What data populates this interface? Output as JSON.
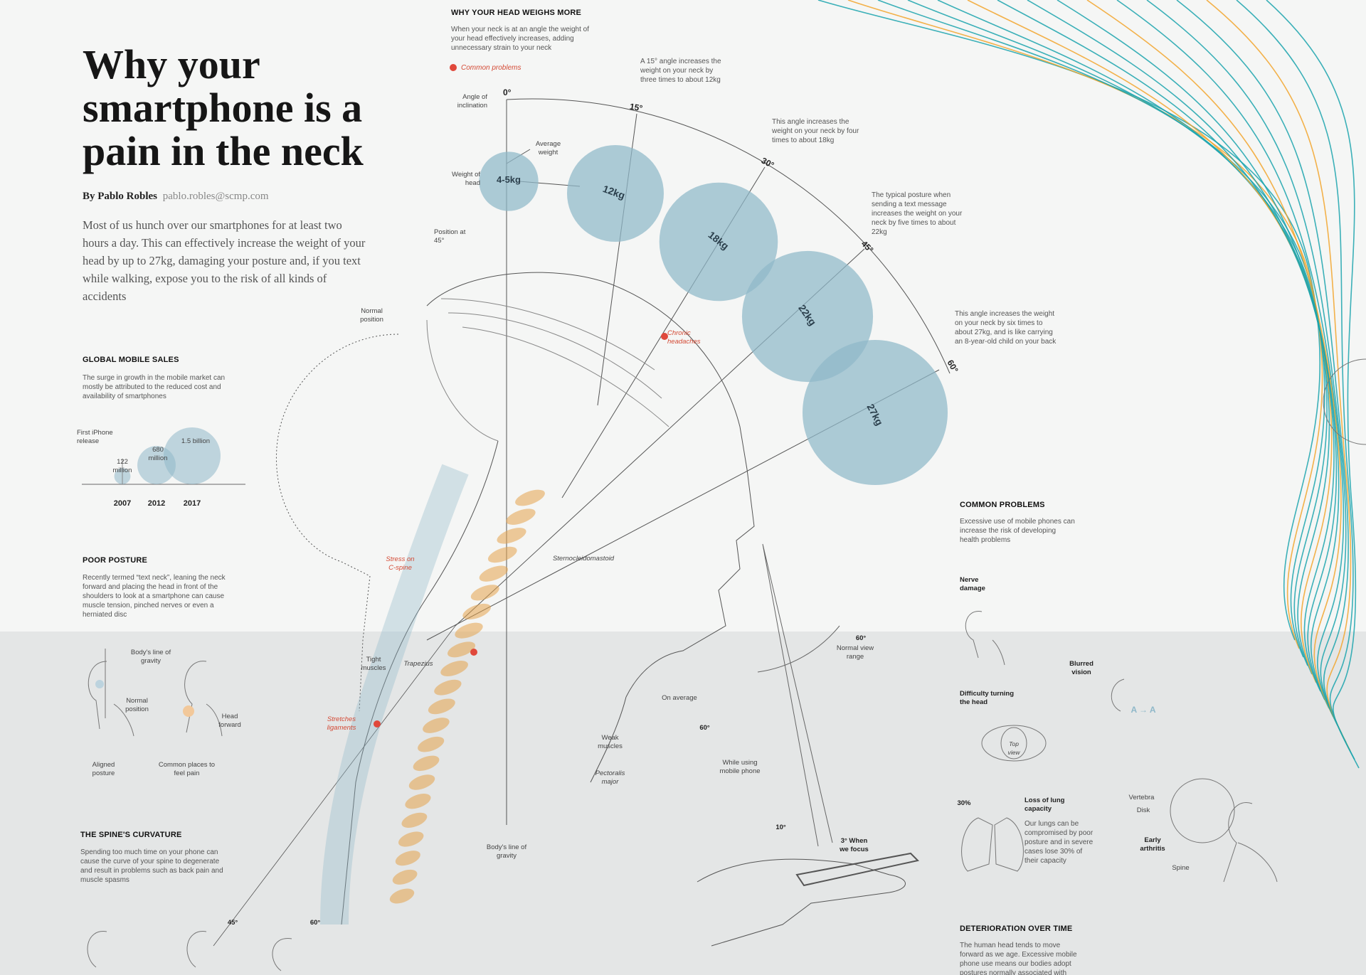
{
  "title": "Why your smartphone is a pain in the neck",
  "byline": {
    "author": "By Pablo Robles",
    "email": "pablo.robles@scmp.com"
  },
  "intro": "Most of us hunch over our smartphones for at least two hours a day. This can effectively increase the weight of your head by up to 27kg, damaging your posture and, if you text while walking, expose you to the risk of all kinds of accidents",
  "colors": {
    "bubble": "#8fb8c9",
    "spine": "#e3a24a",
    "accent_red": "#e0483b",
    "stripe_teal": "#1aa3ad",
    "stripe_orange": "#f2a42c"
  },
  "head_weight": {
    "heading": "WHY YOUR HEAD WEIGHS MORE",
    "description": "When your neck is at an angle the weight of your head effectively increases, adding unnecessary strain to your neck",
    "legend": "Common problems",
    "angle_label": "Angle of inclination",
    "weight_label": "Weight of head",
    "average_label": "Average weight",
    "position_label": "Position at 45°",
    "normal_position": "Normal position",
    "stages": [
      {
        "angle": "0°",
        "weight": "4-5kg",
        "kg": 4.5
      },
      {
        "angle": "15°",
        "weight": "12kg",
        "kg": 12,
        "note": "A 15° angle increases the weight on your neck by three times to about 12kg"
      },
      {
        "angle": "30°",
        "weight": "18kg",
        "kg": 18,
        "note": "This angle increases the weight on your neck by four times to about 18kg"
      },
      {
        "angle": "45°",
        "weight": "22kg",
        "kg": 22,
        "note": "The typical posture when sending a text message increases the weight on your neck by five times to about 22kg"
      },
      {
        "angle": "60°",
        "weight": "27kg",
        "kg": 27,
        "note": "This angle increases the weight on your neck by six times to about 27kg, and is like carrying an 8-year-old child on your back"
      }
    ]
  },
  "figure_labels": {
    "chronic_headaches": "Chronic headaches",
    "stress_on_c_spine": "Stress on C-spine",
    "sternocleidomastoid": "Sternocleidomastoid",
    "tight_muscles": "Tight muscles",
    "trapezius": "Trapezius",
    "stretches_ligaments": "Stretches ligaments",
    "weak_muscles": "Weak muscles",
    "pectoralis_major": "Pectoralis major",
    "bodys_line": "Body's line of gravity",
    "normal_view_range": "Normal view range",
    "view_angle": "60°",
    "on_average": "On average",
    "on_average_angle": "60°",
    "while_using": "While using mobile phone",
    "while_using_angle": "10°",
    "when_focus": "3° When we focus"
  },
  "mobile_sales": {
    "heading": "GLOBAL MOBILE SALES",
    "description": "The surge in growth in the mobile market can mostly be attributed to the reduced cost and availability of smartphones",
    "first_iphone": "First iPhone release",
    "points": [
      {
        "year": "2007",
        "label": "122 million",
        "value": 122
      },
      {
        "year": "2012",
        "label": "680 million",
        "value": 680
      },
      {
        "year": "2017",
        "label": "1.5 billion",
        "value": 1500
      }
    ]
  },
  "poor_posture": {
    "heading": "POOR POSTURE",
    "description": "Recently termed “text neck”, leaning the neck forward and placing the head in front of the shoulders to look at a smartphone can cause muscle tension, pinched nerves or even a herniated disc",
    "gravity": "Body's line of gravity",
    "normal": "Normal position",
    "forward": "Head forward",
    "aligned": "Aligned posture",
    "pain": "Common places to feel pain"
  },
  "spine": {
    "heading": "THE SPINE'S CURVATURE",
    "description": "Spending too much time on your phone can cause the curve of your spine to degenerate and result in problems such as back pain and muscle spasms",
    "angles": [
      "45°",
      "60°"
    ]
  },
  "common_problems": {
    "heading": "COMMON PROBLEMS",
    "description": "Excessive use of mobile phones can increase the risk of developing health problems",
    "nerve": "Nerve damage",
    "blurred": "Blurred vision",
    "blurred_glyph": "A → A",
    "turning": "Difficulty turning the head",
    "top_view": "Top view",
    "lung_pct": "30%",
    "lung_title": "Loss of lung capacity",
    "lung_desc": "Our lungs can be compromised by poor posture and in severe cases lose 30% of their capacity",
    "vertebra": "Vertebra",
    "disk": "Disk",
    "arthritis": "Early arthritis",
    "spine": "Spine"
  },
  "deterioration": {
    "heading": "DETERIORATION OVER TIME",
    "description": "The human head tends to move forward as we age. Excessive mobile phone use means our bodies adopt postures normally associated with older people"
  }
}
